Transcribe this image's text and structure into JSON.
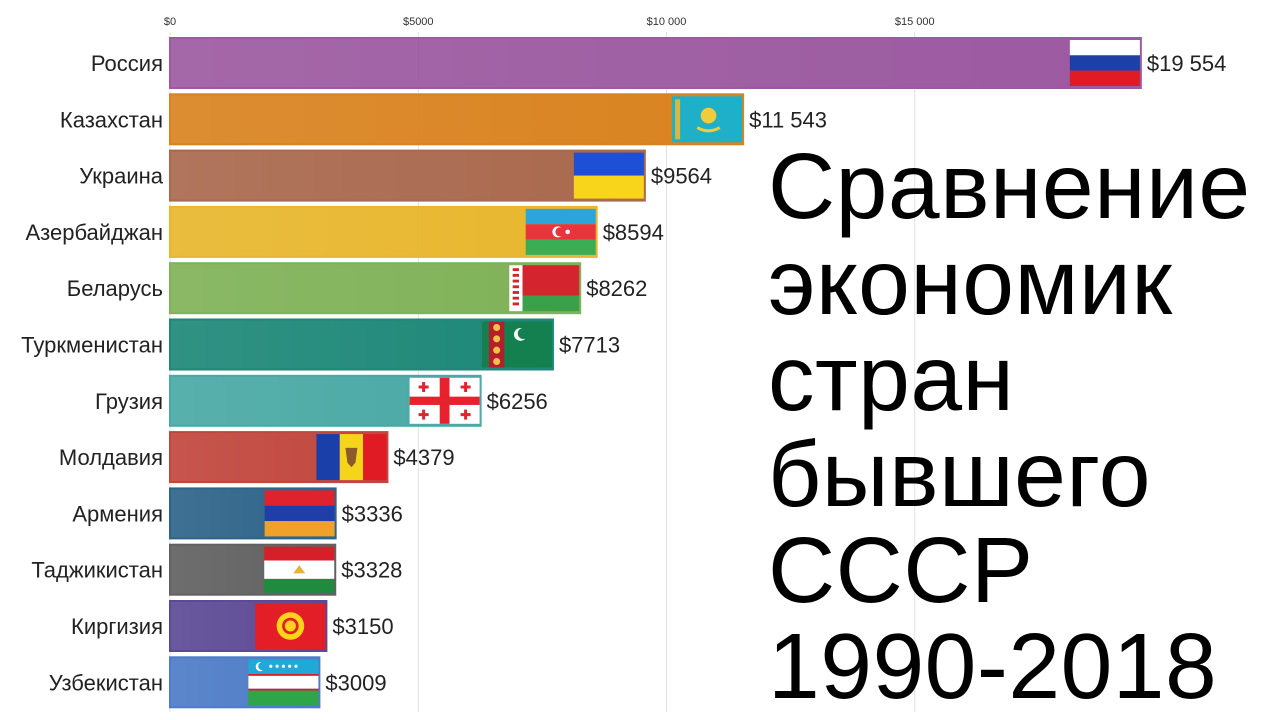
{
  "chart_data": {
    "type": "bar",
    "orientation": "horizontal",
    "categories": [
      "Россия",
      "Казахстан",
      "Украина",
      "Азербайджан",
      "Беларусь",
      "Туркменистан",
      "Грузия",
      "Молдавия",
      "Армения",
      "Таджикистан",
      "Киргизия",
      "Узбекистан"
    ],
    "values": [
      19554,
      11543,
      9564,
      8594,
      8262,
      7713,
      6256,
      4379,
      3336,
      3328,
      3150,
      3009
    ],
    "value_labels": [
      "$19 554",
      "$11 543",
      "$9564",
      "$8594",
      "$8262",
      "$7713",
      "$6256",
      "$4379",
      "$3336",
      "$3328",
      "$3150",
      "$3009"
    ],
    "colors": [
      "#9c5aa0",
      "#d98320",
      "#a9694e",
      "#e8b72e",
      "#80b258",
      "#1e8878",
      "#4aa9a5",
      "#c1473e",
      "#2e6489",
      "#616161",
      "#5d4a95",
      "#4e7cc7"
    ],
    "flags": [
      "russia-flag",
      "kazakhstan-flag",
      "ukraine-flag",
      "azerbaijan-flag",
      "belarus-flag",
      "turkmenistan-flag",
      "georgia-flag",
      "moldova-flag",
      "armenia-flag",
      "tajikistan-flag",
      "kyrgyzstan-flag",
      "uzbekistan-flag"
    ],
    "xticks": [
      0,
      5000,
      10000,
      15000
    ],
    "xtick_labels": [
      "$0",
      "$5000",
      "$10 000",
      "$15 000"
    ],
    "xlim": [
      0,
      20000
    ],
    "grid": true,
    "xlabel": "",
    "ylabel": ""
  },
  "title": {
    "lines": [
      "Сравнение",
      "экономик",
      "стран",
      "бывшего",
      "СССР",
      "1990-2018"
    ]
  }
}
